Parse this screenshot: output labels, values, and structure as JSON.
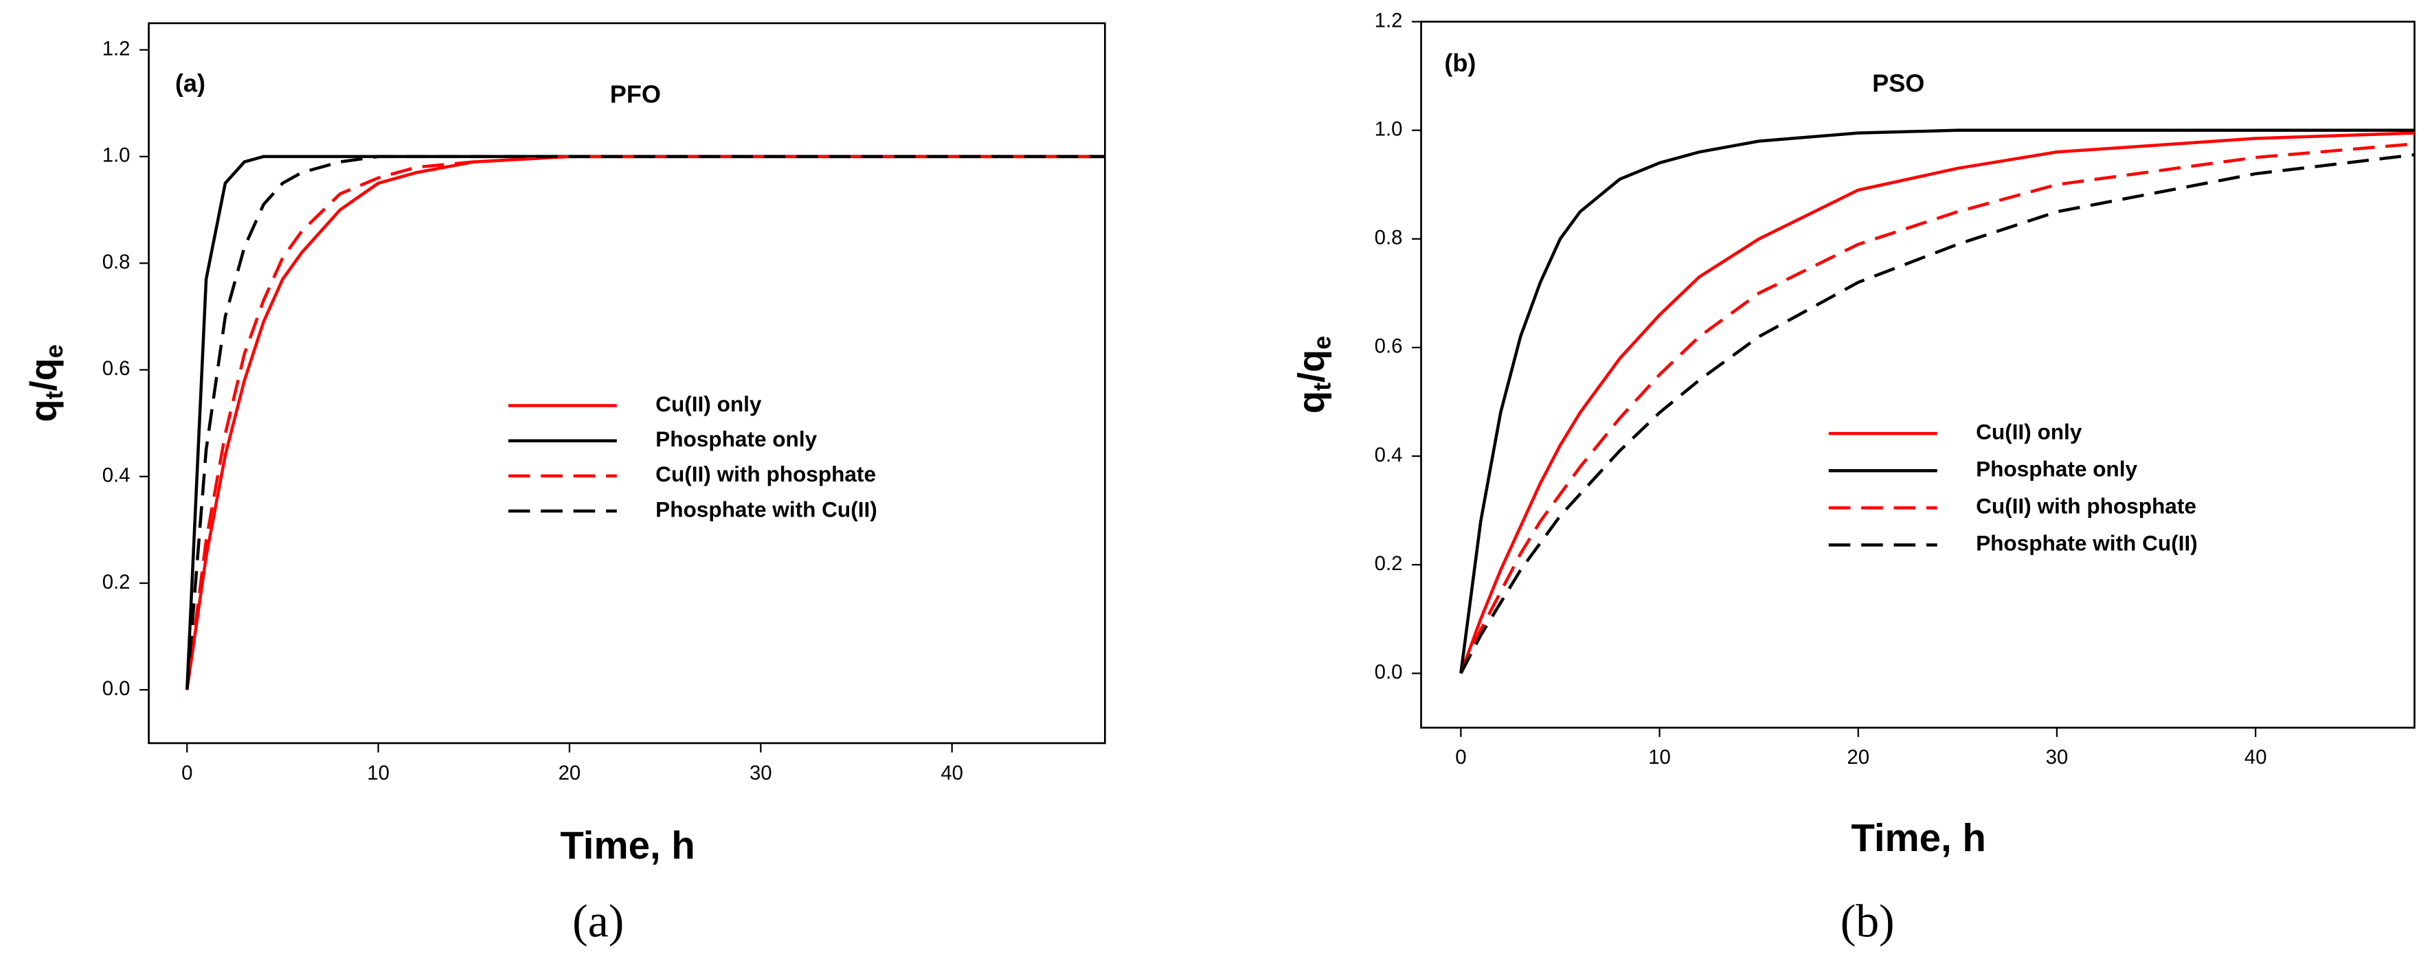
{
  "chart_data": [
    {
      "type": "line",
      "panel_label": "(a)",
      "title": "PFO",
      "xlabel": "Time, h",
      "ylabel_parts": [
        "q",
        "t",
        "/q",
        "e"
      ],
      "caption": "(a)",
      "xlim": [
        -2,
        48
      ],
      "ylim": [
        -0.1,
        1.25
      ],
      "xticks": [
        0,
        10,
        20,
        30,
        40
      ],
      "yticks": [
        {
          "value": 0,
          "label": "0.0"
        },
        {
          "value": 0.2,
          "label": "0.2"
        },
        {
          "value": 0.4,
          "label": "0.4"
        },
        {
          "value": 0.6,
          "label": "0.6"
        },
        {
          "value": 0.8,
          "label": "0.8"
        },
        {
          "value": 1,
          "label": "1.0"
        },
        {
          "value": 1.2,
          "label": "1.2"
        }
      ],
      "x": [
        0,
        1,
        2,
        3,
        4,
        5,
        6,
        8,
        10,
        12,
        15,
        20,
        25,
        30,
        40,
        48
      ],
      "series": [
        {
          "name": "Cu(II) only",
          "color": "#ff0000",
          "dashed": false,
          "values": [
            0,
            0.25,
            0.44,
            0.58,
            0.69,
            0.77,
            0.82,
            0.9,
            0.95,
            0.97,
            0.99,
            1,
            1,
            1,
            1,
            1
          ]
        },
        {
          "name": "Phosphate only",
          "color": "#000000",
          "dashed": false,
          "values": [
            0,
            0.77,
            0.95,
            0.99,
            1,
            1,
            1,
            1,
            1,
            1,
            1,
            1,
            1,
            1,
            1,
            1
          ]
        },
        {
          "name": "Cu(II) with phosphate",
          "color": "#ff0000",
          "dashed": true,
          "values": [
            0,
            0.28,
            0.48,
            0.63,
            0.73,
            0.81,
            0.86,
            0.93,
            0.96,
            0.98,
            0.99,
            1,
            1,
            1,
            1,
            1
          ]
        },
        {
          "name": "Phosphate with Cu(II)",
          "color": "#000000",
          "dashed": true,
          "values": [
            0,
            0.45,
            0.7,
            0.83,
            0.91,
            0.95,
            0.97,
            0.99,
            1,
            1,
            1,
            1,
            1,
            1,
            1,
            1
          ]
        }
      ]
    },
    {
      "type": "line",
      "panel_label": "(b)",
      "title": "PSO",
      "xlabel": "Time, h",
      "ylabel_parts": [
        "q",
        "t",
        "/q",
        "e"
      ],
      "caption": "(b)",
      "xlim": [
        -2,
        48
      ],
      "ylim": [
        -0.1,
        1.2
      ],
      "xticks": [
        0,
        10,
        20,
        30,
        40
      ],
      "yticks": [
        {
          "value": 0,
          "label": "0.0"
        },
        {
          "value": 0.2,
          "label": "0.2"
        },
        {
          "value": 0.4,
          "label": "0.4"
        },
        {
          "value": 0.6,
          "label": "0.6"
        },
        {
          "value": 0.8,
          "label": "0.8"
        },
        {
          "value": 1,
          "label": "1.0"
        },
        {
          "value": 1.2,
          "label": "1.2"
        }
      ],
      "x": [
        0,
        1,
        2,
        3,
        4,
        5,
        6,
        8,
        10,
        12,
        15,
        20,
        25,
        30,
        40,
        48
      ],
      "series": [
        {
          "name": "Cu(II) only",
          "color": "#ff0000",
          "dashed": false,
          "values": [
            0,
            0.1,
            0.19,
            0.27,
            0.35,
            0.42,
            0.48,
            0.58,
            0.66,
            0.73,
            0.8,
            0.89,
            0.93,
            0.96,
            0.985,
            0.995
          ]
        },
        {
          "name": "Phosphate only",
          "color": "#000000",
          "dashed": false,
          "values": [
            0,
            0.28,
            0.48,
            0.62,
            0.72,
            0.8,
            0.85,
            0.91,
            0.94,
            0.96,
            0.98,
            0.995,
            1,
            1,
            1,
            1
          ]
        },
        {
          "name": "Cu(II) with phosphate",
          "color": "#ff0000",
          "dashed": true,
          "values": [
            0,
            0.08,
            0.15,
            0.22,
            0.28,
            0.33,
            0.38,
            0.47,
            0.55,
            0.62,
            0.7,
            0.79,
            0.85,
            0.9,
            0.95,
            0.975
          ]
        },
        {
          "name": "Phosphate with Cu(II)",
          "color": "#000000",
          "dashed": true,
          "values": [
            0,
            0.07,
            0.13,
            0.19,
            0.24,
            0.29,
            0.33,
            0.41,
            0.48,
            0.54,
            0.62,
            0.72,
            0.79,
            0.85,
            0.92,
            0.955
          ]
        }
      ]
    }
  ]
}
